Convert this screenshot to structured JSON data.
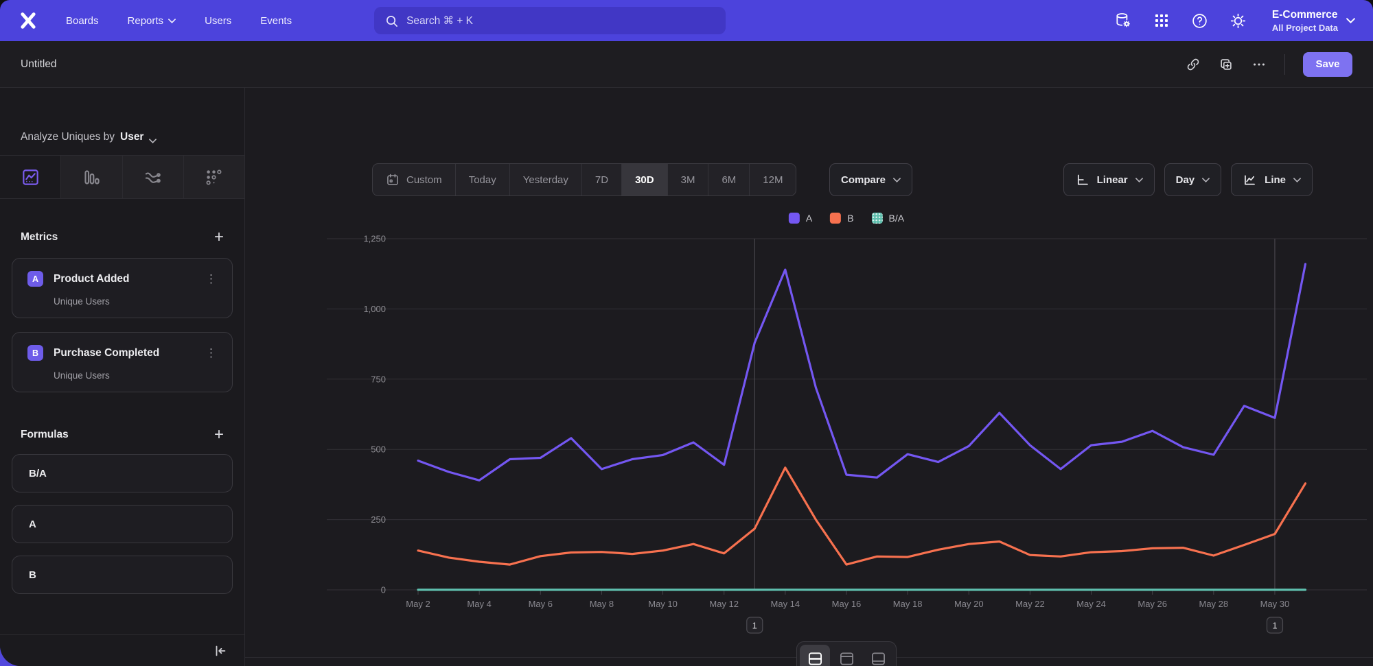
{
  "nav": {
    "items": [
      {
        "label": "Boards",
        "chevron": false
      },
      {
        "label": "Reports",
        "chevron": true
      },
      {
        "label": "Users",
        "chevron": false
      },
      {
        "label": "Events",
        "chevron": false
      }
    ]
  },
  "search": {
    "placeholder": "Search  ⌘ + K"
  },
  "project": {
    "name": "E-Commerce",
    "scope": "All Project Data"
  },
  "titlebar": {
    "title": "Untitled",
    "save_label": "Save"
  },
  "sidebar": {
    "analyze_prefix": "Analyze Uniques by",
    "analyze_value": "User",
    "tabs": [
      "insights",
      "funnels",
      "flows",
      "retention"
    ],
    "active_tab": "insights",
    "metrics_title": "Metrics",
    "metrics": [
      {
        "letter": "A",
        "name": "Product Added",
        "measure": "Unique Users"
      },
      {
        "letter": "B",
        "name": "Purchase Completed",
        "measure": "Unique Users"
      }
    ],
    "formulas_title": "Formulas",
    "formulas": [
      "B/A",
      "A",
      "B"
    ]
  },
  "toolbar": {
    "date_ranges": [
      "Custom",
      "Today",
      "Yesterday",
      "7D",
      "30D",
      "3M",
      "6M",
      "12M"
    ],
    "active_range": "30D",
    "compare_label": "Compare",
    "scale_label": "Linear",
    "interval_label": "Day",
    "chart_type_label": "Line"
  },
  "colors": {
    "nav_purple": "#4c43dc",
    "save_button": "#7e72f1",
    "metric_badge": "#6e5ce9"
  },
  "chart_data": {
    "type": "line",
    "title": "",
    "x": [
      "May 2",
      "May 3",
      "May 4",
      "May 5",
      "May 6",
      "May 7",
      "May 8",
      "May 9",
      "May 10",
      "May 11",
      "May 12",
      "May 13",
      "May 14",
      "May 15",
      "May 16",
      "May 17",
      "May 18",
      "May 19",
      "May 20",
      "May 21",
      "May 22",
      "May 23",
      "May 24",
      "May 25",
      "May 26",
      "May 27",
      "May 28",
      "May 29",
      "May 30",
      "May 31"
    ],
    "x_label_every": 2,
    "yticks": [
      0,
      250,
      500,
      750,
      1000,
      1250
    ],
    "ytick_labels": [
      "0",
      "250",
      "500",
      "750",
      "1,000",
      "1,250"
    ],
    "ylim": [
      0,
      1250
    ],
    "grid": "horizontal",
    "legend_position": "top-center",
    "series": [
      {
        "name": "A",
        "color": "#7457f2",
        "values": [
          460,
          420,
          390,
          465,
          470,
          540,
          430,
          465,
          480,
          525,
          445,
          880,
          1140,
          720,
          410,
          400,
          483,
          455,
          512,
          630,
          515,
          430,
          515,
          527,
          566,
          508,
          481,
          655,
          612,
          1160
        ]
      },
      {
        "name": "B",
        "color": "#f7714f",
        "values": [
          140,
          115,
          100,
          90,
          120,
          133,
          135,
          128,
          140,
          163,
          130,
          218,
          435,
          250,
          90,
          119,
          117,
          143,
          163,
          172,
          124,
          119,
          134,
          138,
          148,
          150,
          122,
          160,
          199,
          379
        ]
      },
      {
        "name": "B/A",
        "color": "#5fbfae",
        "values": [
          0.3,
          0.27,
          0.26,
          0.19,
          0.26,
          0.25,
          0.31,
          0.28,
          0.29,
          0.31,
          0.29,
          0.25,
          0.38,
          0.35,
          0.22,
          0.3,
          0.24,
          0.31,
          0.32,
          0.27,
          0.24,
          0.28,
          0.26,
          0.26,
          0.26,
          0.3,
          0.25,
          0.24,
          0.33,
          0.33
        ]
      }
    ],
    "annotations": [
      {
        "label": "1",
        "x": "May 13"
      },
      {
        "label": "1",
        "x": "May 30"
      }
    ]
  },
  "bottom": {
    "layout_options": [
      "split",
      "chart-top",
      "chart-bottom"
    ],
    "active_layout": "split"
  }
}
